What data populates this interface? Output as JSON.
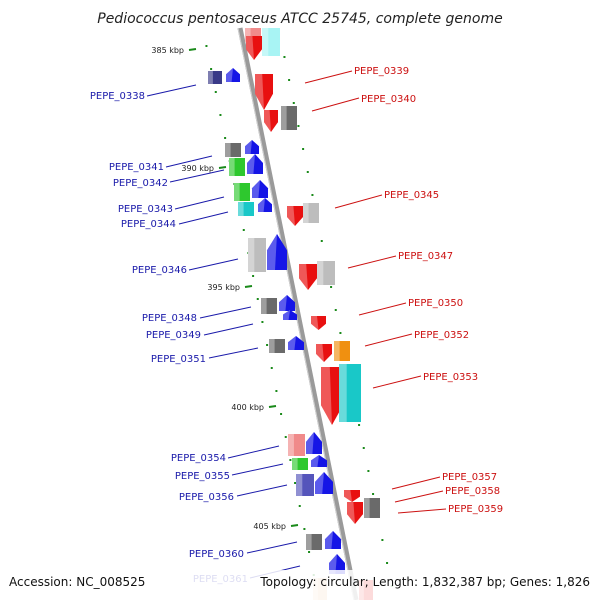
{
  "title": "Pediococcus pentosaceus ATCC 25745, complete genome",
  "footer": {
    "accession": "Accession: NC_008525",
    "summary": "Topology: circular; Length: 1,832,387 bp; Genes: 1,826"
  },
  "colors": {
    "left_label": "#1a1aaa",
    "right_label": "#cc1111",
    "backbone": "#999999",
    "tick": "#1a8a1a"
  },
  "scale_ticks": [
    {
      "label": "385 kbp"
    },
    {
      "label": "390 kbp"
    },
    {
      "label": "395 kbp"
    },
    {
      "label": "400 kbp"
    },
    {
      "label": "405 kbp"
    }
  ],
  "genes_left": [
    {
      "label": "PEPE_0338"
    },
    {
      "label": "PEPE_0341"
    },
    {
      "label": "PEPE_0342"
    },
    {
      "label": "PEPE_0343"
    },
    {
      "label": "PEPE_0344"
    },
    {
      "label": "PEPE_0346"
    },
    {
      "label": "PEPE_0348"
    },
    {
      "label": "PEPE_0349"
    },
    {
      "label": "PEPE_0351"
    },
    {
      "label": "PEPE_0354"
    },
    {
      "label": "PEPE_0355"
    },
    {
      "label": "PEPE_0356"
    },
    {
      "label": "PEPE_0360"
    },
    {
      "label": "PEPE_0361"
    }
  ],
  "genes_right": [
    {
      "label": "PEPE_0339"
    },
    {
      "label": "PEPE_0340"
    },
    {
      "label": "PEPE_0345"
    },
    {
      "label": "PEPE_0347"
    },
    {
      "label": "PEPE_0350"
    },
    {
      "label": "PEPE_0352"
    },
    {
      "label": "PEPE_0353"
    },
    {
      "label": "PEPE_0357"
    },
    {
      "label": "PEPE_0358"
    },
    {
      "label": "PEPE_0359"
    }
  ]
}
